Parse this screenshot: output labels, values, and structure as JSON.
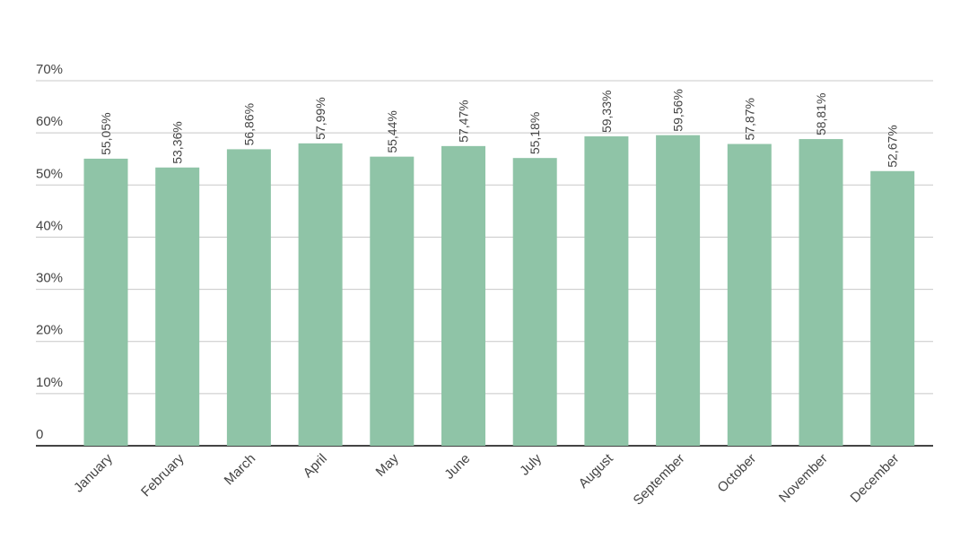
{
  "chart_data": {
    "type": "bar",
    "categories": [
      "January",
      "February",
      "March",
      "April",
      "May",
      "June",
      "July",
      "August",
      "September",
      "October",
      "November",
      "December"
    ],
    "values": [
      55.05,
      53.36,
      56.86,
      57.99,
      55.44,
      57.47,
      55.18,
      59.33,
      59.56,
      57.87,
      58.81,
      52.67
    ],
    "value_labels": [
      "55,05%",
      "53,36%",
      "56,86%",
      "57,99%",
      "55,44%",
      "57,47%",
      "55,18%",
      "59,33%",
      "59,56%",
      "57,87%",
      "58,81%",
      "52,67%"
    ],
    "color": "#8fc4a7",
    "ylim": [
      0,
      70
    ],
    "yticks": [
      0,
      {
        "value": 10,
        "label": "10%"
      },
      {
        "value": 20,
        "label": "20%"
      },
      {
        "value": 30,
        "label": "30%"
      },
      {
        "value": 40,
        "label": "40%"
      },
      {
        "value": 50,
        "label": "50%"
      },
      {
        "value": 60,
        "label": "60%"
      },
      {
        "value": 70,
        "label": "70%"
      }
    ],
    "grid": true
  }
}
